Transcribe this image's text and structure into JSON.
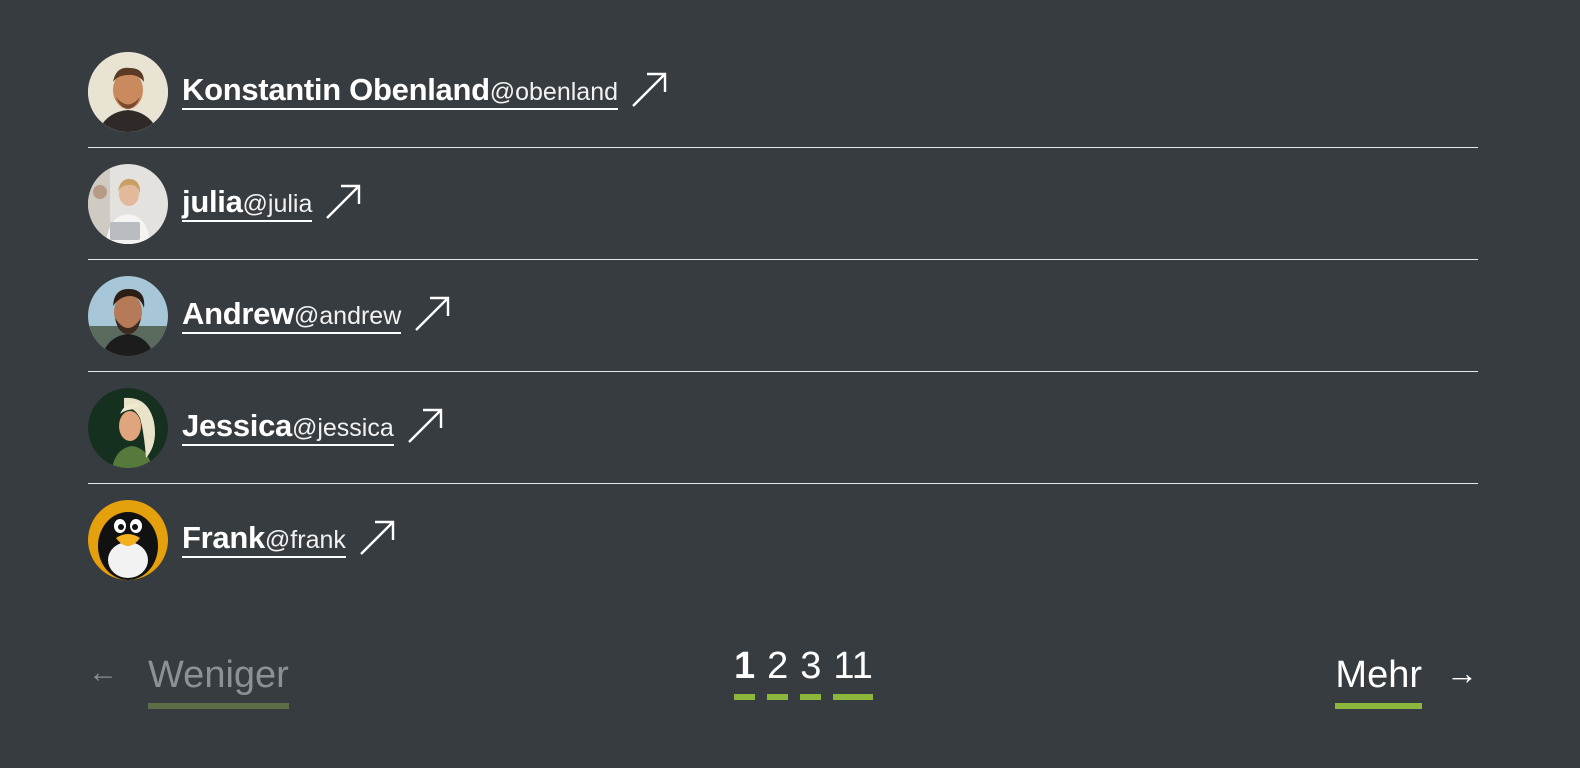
{
  "users": [
    {
      "name": "Konstantin Obenland",
      "handle": "@obenland",
      "avatar": "photo-man-beard"
    },
    {
      "name": "julia",
      "handle": "@julia",
      "avatar": "photo-woman-laptop"
    },
    {
      "name": "Andrew",
      "handle": "@andrew",
      "avatar": "photo-man-beard-dark"
    },
    {
      "name": "Jessica",
      "handle": "@jessica",
      "avatar": "illustration-woman-blonde"
    },
    {
      "name": "Frank",
      "handle": "@frank",
      "avatar": "tux-penguin"
    }
  ],
  "pagination": {
    "prev_label": "Weniger",
    "prev_arrow": "←",
    "next_label": "Mehr",
    "next_arrow": "→",
    "pages": [
      "1",
      "2",
      "3",
      "11"
    ],
    "current_page": "1"
  },
  "colors": {
    "background": "#373c40",
    "accent": "#8cb63c",
    "accent_disabled": "#5d6e47",
    "text": "#ffffff",
    "muted": "#8d9195"
  }
}
